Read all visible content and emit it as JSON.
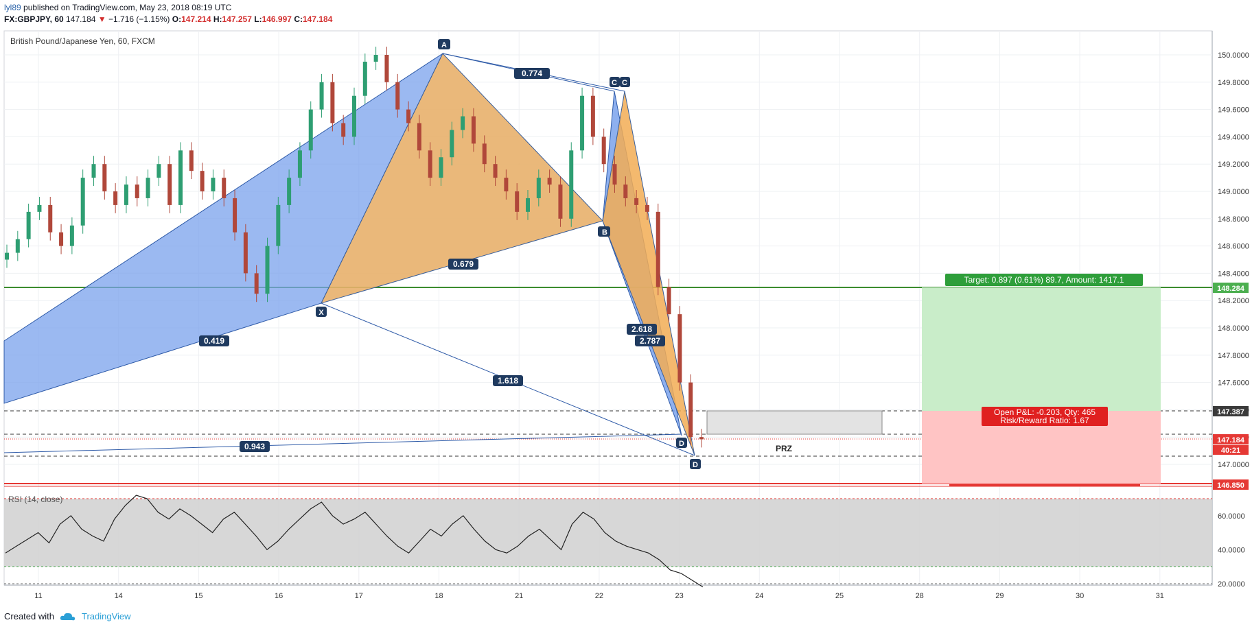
{
  "header": {
    "user": "lyl89",
    "published_text": "published on TradingView.com, May 23, 2018 08:19 UTC",
    "symbol": "FX:GBPJPY, 60",
    "last": "147.184",
    "change": "−1.716 (−1.15%)",
    "o_label": "O:",
    "o_value": "147.214",
    "h_label": "H:",
    "h_value": "147.257",
    "l_label": "L:",
    "l_value": "146.997",
    "c_label": "C:",
    "c_value": "147.184"
  },
  "footer": {
    "created_with": "Created with",
    "brand": "TradingView"
  },
  "colors": {
    "pattern_blue": "#7aa2ec",
    "pattern_orange": "#e8b06b",
    "target_green": "#c9edc9",
    "stop_red": "#ffc4c4",
    "rsi_band": "#d3d3d3",
    "candle_up": "#2e9e72",
    "candle_down": "#b0473a"
  },
  "chart_data": [
    {
      "type": "candlestick",
      "title": "British Pound/Japanese Yen, 60, FXCM",
      "x_tick_labels": [
        "11",
        "14",
        "15",
        "16",
        "17",
        "18",
        "21",
        "22",
        "23",
        "24",
        "25",
        "28",
        "29",
        "30",
        "31"
      ],
      "y_tick_labels": [
        "147.0000",
        "147.2000",
        "147.4000",
        "147.6000",
        "147.8000",
        "148.0000",
        "148.2000",
        "148.4000",
        "148.6000",
        "148.8000",
        "149.0000",
        "149.2000",
        "149.4000",
        "149.6000",
        "149.8000",
        "150.0000"
      ],
      "ylim": [
        146.85,
        150.1
      ],
      "series": [
        {
          "name": "GBPJPY",
          "close_path": [
            148.55,
            148.65,
            148.85,
            148.9,
            148.7,
            148.6,
            148.75,
            149.1,
            149.2,
            149.0,
            148.9,
            149.05,
            148.95,
            149.1,
            149.2,
            148.9,
            149.3,
            149.15,
            149.0,
            149.1,
            148.95,
            148.7,
            148.4,
            148.25,
            148.6,
            148.9,
            149.1,
            149.3,
            149.6,
            149.8,
            149.5,
            149.4,
            149.7,
            149.95,
            150.0,
            149.8,
            149.6,
            149.5,
            149.3,
            149.1,
            149.25,
            149.45,
            149.55,
            149.35,
            149.2,
            149.1,
            149.0,
            148.85,
            148.95,
            149.1,
            149.05,
            148.8,
            149.3,
            149.7,
            149.4,
            149.2,
            149.05,
            148.95,
            148.9,
            148.85,
            148.3,
            148.1,
            147.6,
            147.2,
            147.184
          ]
        }
      ],
      "annotations": {
        "points": [
          "X",
          "A",
          "B",
          "C",
          "D",
          "C",
          "D"
        ],
        "ratios": [
          "0.774",
          "0.679",
          "0.419",
          "1.618",
          "0.943",
          "2.618",
          "2.787"
        ],
        "zone_label": "PRZ",
        "target_label": "Target: 0.897 (0.61%) 89.7, Amount: 1417.1",
        "pnl_label": "Open P&L: -0.203, Qty: 465",
        "rr_label": "Risk/Reward Ratio: 1.67",
        "price_tags": [
          {
            "value": "148.284",
            "color": "#4caf50"
          },
          {
            "value": "147.387",
            "color": "#3a3a3a"
          },
          {
            "value": "147.184",
            "color": "#e53935"
          },
          {
            "value": "40:21",
            "color": "#e53935"
          },
          {
            "value": "146.850",
            "color": "#e53935"
          }
        ]
      }
    },
    {
      "type": "line",
      "title": "RSI (14, close)",
      "y_tick_labels": [
        "20.0000",
        "40.0000",
        "60.0000"
      ],
      "ylim": [
        15,
        78
      ],
      "overbought": 70,
      "oversold": 30,
      "series": [
        {
          "name": "RSI",
          "values": [
            38,
            42,
            46,
            50,
            44,
            55,
            60,
            52,
            48,
            45,
            58,
            66,
            72,
            70,
            62,
            58,
            64,
            60,
            55,
            50,
            58,
            62,
            55,
            48,
            40,
            45,
            52,
            58,
            64,
            68,
            60,
            55,
            58,
            62,
            55,
            48,
            42,
            38,
            45,
            52,
            48,
            55,
            60,
            52,
            45,
            40,
            38,
            42,
            48,
            52,
            46,
            40,
            55,
            62,
            58,
            50,
            45,
            42,
            40,
            38,
            34,
            28,
            26,
            22,
            18
          ]
        }
      ]
    }
  ]
}
